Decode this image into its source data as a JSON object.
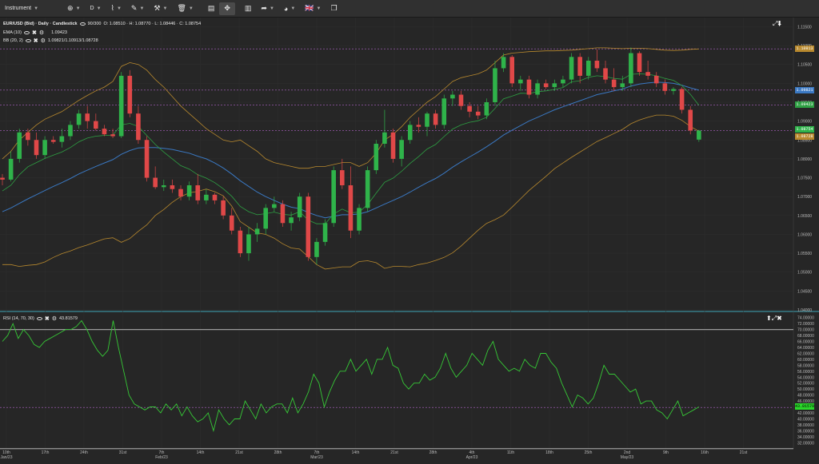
{
  "toolbar": {
    "instrument": "Instrument",
    "period": "D",
    "flag": "🇬🇧"
  },
  "legend": {
    "title": "EUR/USD (Bid) · Daily · Candlestick",
    "count": "90/300",
    "ohlc": "O: 1.08510 · H: 1.08770 · L: 1.08446 · C: 1.08754",
    "ema_label": "EMA (10)",
    "ema_value": "1.09423",
    "bb_label": "BB (20, 2)",
    "bb_value": "1.09821/1.10913/1.08728",
    "rsi_label": "RSI (14, 70, 30)",
    "rsi_value": "43.81579"
  },
  "colors": {
    "up": "#2fb34a",
    "down": "#e04848",
    "ema": "#2ea043",
    "bb_mid": "#3a78c2",
    "bb_band": "#b8892e",
    "rsi": "#36c836",
    "bg": "#262626"
  },
  "price_axis": {
    "ticks": [
      "1.11500",
      "1.11000",
      "1.10500",
      "1.10000",
      "1.09500",
      "1.09000",
      "1.08500",
      "1.08000",
      "1.07500",
      "1.07000",
      "1.06500",
      "1.06000",
      "1.05500",
      "1.05000",
      "1.04500",
      "1.04000"
    ],
    "badges": {
      "upper": "1.10913",
      "mid": "1.09821",
      "ema": "1.09423",
      "close": "1.08754",
      "lower": "1.08728"
    }
  },
  "rsi_axis": {
    "ticks": [
      "74.00000",
      "72.00000",
      "70.00000",
      "68.00000",
      "66.00000",
      "64.00000",
      "62.00000",
      "60.00000",
      "58.00000",
      "56.00000",
      "54.00000",
      "52.00000",
      "50.00000",
      "48.00000",
      "46.00000",
      "44.00000",
      "42.00000",
      "40.00000",
      "38.00000",
      "36.00000",
      "34.00000",
      "32.00000"
    ],
    "badge": "43.81579"
  },
  "x_axis": [
    {
      "l1": "10th",
      "l2": "Jan/23"
    },
    {
      "l1": "17th",
      "l2": ""
    },
    {
      "l1": "24th",
      "l2": ""
    },
    {
      "l1": "31st",
      "l2": ""
    },
    {
      "l1": "7th",
      "l2": "Feb/23"
    },
    {
      "l1": "14th",
      "l2": ""
    },
    {
      "l1": "21st",
      "l2": ""
    },
    {
      "l1": "28th",
      "l2": ""
    },
    {
      "l1": "7th",
      "l2": "Mar/23"
    },
    {
      "l1": "14th",
      "l2": ""
    },
    {
      "l1": "21st",
      "l2": ""
    },
    {
      "l1": "28th",
      "l2": ""
    },
    {
      "l1": "4th",
      "l2": "Apr/23"
    },
    {
      "l1": "11th",
      "l2": ""
    },
    {
      "l1": "18th",
      "l2": ""
    },
    {
      "l1": "25th",
      "l2": ""
    },
    {
      "l1": "2nd",
      "l2": "May/23"
    },
    {
      "l1": "9th",
      "l2": ""
    },
    {
      "l1": "16th",
      "l2": ""
    },
    {
      "l1": "21st",
      "l2": ""
    }
  ],
  "chart_data": {
    "type": "candlestick",
    "ylim": [
      1.04,
      1.117
    ],
    "rsi_ylim": [
      31,
      75
    ],
    "rsi_levels": [
      70,
      30
    ],
    "candles": [
      [
        1.075,
        1.076,
        1.073,
        1.0745
      ],
      [
        1.0745,
        1.082,
        1.074,
        1.08
      ],
      [
        1.08,
        1.088,
        1.079,
        1.087
      ],
      [
        1.087,
        1.088,
        1.0835,
        1.085
      ],
      [
        1.085,
        1.087,
        1.08,
        1.081
      ],
      [
        1.081,
        1.086,
        1.08,
        1.085
      ],
      [
        1.085,
        1.086,
        1.084,
        1.0845
      ],
      [
        1.0845,
        1.088,
        1.083,
        1.086
      ],
      [
        1.086,
        1.09,
        1.085,
        1.089
      ],
      [
        1.089,
        1.093,
        1.088,
        1.092
      ],
      [
        1.092,
        1.094,
        1.088,
        1.09
      ],
      [
        1.09,
        1.092,
        1.0875,
        1.088
      ],
      [
        1.088,
        1.089,
        1.086,
        1.0865
      ],
      [
        1.0865,
        1.088,
        1.0855,
        1.086
      ],
      [
        1.086,
        1.103,
        1.0855,
        1.102
      ],
      [
        1.102,
        1.1035,
        1.091,
        1.092
      ],
      [
        1.092,
        1.094,
        1.084,
        1.085
      ],
      [
        1.085,
        1.086,
        1.074,
        1.075
      ],
      [
        1.075,
        1.078,
        1.072,
        1.0725
      ],
      [
        1.0725,
        1.0745,
        1.0715,
        1.073
      ],
      [
        1.073,
        1.0745,
        1.071,
        1.072
      ],
      [
        1.072,
        1.073,
        1.069,
        1.07
      ],
      [
        1.07,
        1.074,
        1.069,
        1.073
      ],
      [
        1.073,
        1.076,
        1.068,
        1.069
      ],
      [
        1.069,
        1.072,
        1.068,
        1.0705
      ],
      [
        1.0705,
        1.071,
        1.068,
        1.069
      ],
      [
        1.069,
        1.07,
        1.064,
        1.065
      ],
      [
        1.065,
        1.067,
        1.06,
        1.061
      ],
      [
        1.061,
        1.062,
        1.054,
        1.055
      ],
      [
        1.055,
        1.062,
        1.053,
        1.06
      ],
      [
        1.06,
        1.063,
        1.058,
        1.0615
      ],
      [
        1.0615,
        1.068,
        1.06,
        1.067
      ],
      [
        1.067,
        1.07,
        1.066,
        1.068
      ],
      [
        1.068,
        1.069,
        1.062,
        1.063
      ],
      [
        1.063,
        1.066,
        1.061,
        1.0645
      ],
      [
        1.0645,
        1.071,
        1.0635,
        1.07
      ],
      [
        1.07,
        1.071,
        1.053,
        1.054
      ],
      [
        1.054,
        1.059,
        1.052,
        1.058
      ],
      [
        1.058,
        1.064,
        1.057,
        1.063
      ],
      [
        1.063,
        1.078,
        1.062,
        1.077
      ],
      [
        1.077,
        1.08,
        1.072,
        1.073
      ],
      [
        1.073,
        1.078,
        1.059,
        1.061
      ],
      [
        1.061,
        1.068,
        1.06,
        1.067
      ],
      [
        1.067,
        1.078,
        1.066,
        1.077
      ],
      [
        1.077,
        1.085,
        1.076,
        1.084
      ],
      [
        1.084,
        1.093,
        1.083,
        1.087
      ],
      [
        1.087,
        1.088,
        1.079,
        1.08
      ],
      [
        1.08,
        1.086,
        1.078,
        1.085
      ],
      [
        1.085,
        1.09,
        1.084,
        1.089
      ],
      [
        1.089,
        1.091,
        1.087,
        1.0885
      ],
      [
        1.0885,
        1.0925,
        1.086,
        1.092
      ],
      [
        1.092,
        1.093,
        1.088,
        1.089
      ],
      [
        1.089,
        1.097,
        1.088,
        1.096
      ],
      [
        1.096,
        1.098,
        1.094,
        1.097
      ],
      [
        1.097,
        1.098,
        1.093,
        1.094
      ],
      [
        1.094,
        1.095,
        1.091,
        1.0925
      ],
      [
        1.0925,
        1.094,
        1.0905,
        1.0915
      ],
      [
        1.0915,
        1.096,
        1.0905,
        1.095
      ],
      [
        1.095,
        1.106,
        1.094,
        1.104
      ],
      [
        1.104,
        1.108,
        1.103,
        1.107
      ],
      [
        1.107,
        1.1075,
        1.099,
        1.1
      ],
      [
        1.1,
        1.102,
        1.098,
        1.101
      ],
      [
        1.101,
        1.102,
        1.096,
        1.097
      ],
      [
        1.097,
        1.101,
        1.096,
        1.1
      ],
      [
        1.1,
        1.101,
        1.0985,
        1.099
      ],
      [
        1.099,
        1.101,
        1.098,
        1.1
      ],
      [
        1.1,
        1.102,
        1.099,
        1.101
      ],
      [
        1.101,
        1.108,
        1.1,
        1.107
      ],
      [
        1.107,
        1.108,
        1.1,
        1.102
      ],
      [
        1.102,
        1.107,
        1.101,
        1.106
      ],
      [
        1.106,
        1.109,
        1.103,
        1.104
      ],
      [
        1.104,
        1.106,
        1.1,
        1.101
      ],
      [
        1.101,
        1.104,
        1.098,
        1.099
      ],
      [
        1.099,
        1.102,
        1.098,
        1.1
      ],
      [
        1.1,
        1.1095,
        1.099,
        1.108
      ],
      [
        1.108,
        1.1085,
        1.102,
        1.103
      ],
      [
        1.103,
        1.106,
        1.101,
        1.102
      ],
      [
        1.102,
        1.103,
        1.099,
        1.1
      ],
      [
        1.1,
        1.101,
        1.097,
        1.098
      ],
      [
        1.098,
        1.099,
        1.097,
        1.0985
      ],
      [
        1.0985,
        1.099,
        1.092,
        1.093
      ],
      [
        1.093,
        1.094,
        1.0865,
        1.0875
      ],
      [
        1.0851,
        1.0877,
        1.0845,
        1.0875
      ]
    ],
    "ema": [
      1.0715,
      1.073,
      1.0758,
      1.0779,
      1.079,
      1.0801,
      1.081,
      1.0818,
      1.083,
      1.0845,
      1.0855,
      1.086,
      1.0862,
      1.0863,
      1.089,
      1.0894,
      1.0886,
      1.0862,
      1.0838,
      1.0818,
      1.08,
      1.0782,
      1.0773,
      1.0758,
      1.0749,
      1.0737,
      1.0721,
      1.0701,
      1.0674,
      1.066,
      1.0652,
      1.0655,
      1.0659,
      1.0653,
      1.0651,
      1.066,
      1.0638,
      1.0628,
      1.0628,
      1.0654,
      1.0667,
      1.0657,
      1.0659,
      1.0679,
      1.0709,
      1.0738,
      1.0749,
      1.0767,
      1.0788,
      1.0806,
      1.0826,
      1.0838,
      1.0859,
      1.0879,
      1.089,
      1.0897,
      1.0901,
      1.091,
      1.0934,
      1.0959,
      1.0966,
      1.0974,
      1.0973,
      1.0978,
      1.098,
      1.0984,
      1.0989,
      1.1004,
      1.1007,
      1.1016,
      1.102,
      1.1018,
      1.1013,
      1.1011,
      1.1024,
      1.1025,
      1.1024,
      1.102,
      1.1013,
      1.1008,
      1.0994,
      1.0971,
      1.0942
    ],
    "bb_mid": [
      1.066,
      1.067,
      1.0682,
      1.0694,
      1.0705,
      1.0716,
      1.0727,
      1.0737,
      1.0748,
      1.076,
      1.077,
      1.078,
      1.0789,
      1.0798,
      1.0812,
      1.0822,
      1.0829,
      1.083,
      1.083,
      1.0828,
      1.0825,
      1.082,
      1.0815,
      1.0807,
      1.08,
      1.0789,
      1.0776,
      1.076,
      1.0742,
      1.0727,
      1.0712,
      1.07,
      1.069,
      1.068,
      1.0672,
      1.0668,
      1.0658,
      1.065,
      1.0644,
      1.0648,
      1.0652,
      1.0652,
      1.0654,
      1.066,
      1.067,
      1.068,
      1.069,
      1.07,
      1.0712,
      1.0725,
      1.0737,
      1.0748,
      1.0762,
      1.0778,
      1.0792,
      1.0805,
      1.0818,
      1.0832,
      1.0847,
      1.0863,
      1.0876,
      1.0888,
      1.09,
      1.091,
      1.092,
      1.093,
      1.0938,
      1.0946,
      1.0954,
      1.0962,
      1.097,
      1.0975,
      1.098,
      1.0985,
      1.0993,
      1.0998,
      1.1001,
      1.1003,
      1.1002,
      1.1,
      1.0995,
      1.0988,
      1.0982
    ],
    "bb_up": [
      1.08,
      1.082,
      1.085,
      1.087,
      1.089,
      1.0905,
      1.0915,
      1.0925,
      1.094,
      1.0955,
      1.0968,
      1.098,
      1.099,
      1.1005,
      1.1045,
      1.1055,
      1.105,
      1.1035,
      1.101,
      1.099,
      1.0965,
      1.094,
      1.092,
      1.09,
      1.088,
      1.0865,
      1.085,
      1.0845,
      1.085,
      1.0835,
      1.082,
      1.08,
      1.079,
      1.0785,
      1.078,
      1.0775,
      1.0775,
      1.078,
      1.078,
      1.0785,
      1.079,
      1.079,
      1.078,
      1.079,
      1.0815,
      1.085,
      1.0865,
      1.0885,
      1.091,
      1.093,
      1.095,
      1.0965,
      1.0985,
      1.1005,
      1.1015,
      1.102,
      1.1025,
      1.1035,
      1.1055,
      1.1075,
      1.108,
      1.1082,
      1.1084,
      1.1085,
      1.1086,
      1.1086,
      1.1087,
      1.1088,
      1.109,
      1.1092,
      1.1094,
      1.1094,
      1.1093,
      1.1092,
      1.1093,
      1.1093,
      1.1092,
      1.109,
      1.1088,
      1.1087,
      1.1088,
      1.109,
      1.1091
    ],
    "bb_low": [
      1.052,
      1.052,
      1.0515,
      1.0518,
      1.052,
      1.0527,
      1.0539,
      1.0549,
      1.0556,
      1.0565,
      1.0572,
      1.058,
      1.0588,
      1.0591,
      1.0579,
      1.0589,
      1.0608,
      1.0625,
      1.065,
      1.0666,
      1.0685,
      1.07,
      1.071,
      1.0714,
      1.072,
      1.0713,
      1.0702,
      1.0675,
      1.0634,
      1.0619,
      1.0604,
      1.06,
      1.059,
      1.0575,
      1.0564,
      1.0561,
      1.0541,
      1.052,
      1.0508,
      1.0511,
      1.0514,
      1.0514,
      1.0528,
      1.053,
      1.0525,
      1.051,
      1.0515,
      1.0515,
      1.0514,
      1.052,
      1.0524,
      1.0531,
      1.0539,
      1.0551,
      1.0569,
      1.059,
      1.0611,
      1.0629,
      1.0639,
      1.0651,
      1.0672,
      1.0694,
      1.0716,
      1.0735,
      1.0754,
      1.0774,
      1.0789,
      1.0804,
      1.0818,
      1.0832,
      1.0846,
      1.0856,
      1.0867,
      1.0878,
      1.0893,
      1.0903,
      1.091,
      1.0916,
      1.0916,
      1.0913,
      1.0902,
      1.0886,
      1.0873
    ],
    "rsi": [
      66,
      68,
      72,
      67,
      70,
      68,
      65,
      64,
      66,
      67,
      68,
      69,
      70,
      70,
      71,
      73,
      70,
      66,
      63,
      61,
      63,
      73,
      64,
      56,
      48,
      45,
      44,
      43,
      44,
      44,
      42,
      45,
      43,
      45,
      41,
      44,
      41,
      39,
      40,
      42,
      36,
      43,
      40,
      38,
      40,
      40,
      46,
      43,
      40,
      45,
      42,
      44,
      45,
      45,
      42,
      47,
      42,
      45,
      49,
      55,
      52,
      44,
      49,
      53,
      56,
      56,
      60,
      56,
      58,
      60,
      55,
      60,
      60,
      64,
      58,
      57,
      52,
      50,
      52,
      52,
      55,
      53,
      54,
      57,
      62,
      57,
      54,
      56,
      58,
      62,
      60,
      58,
      63,
      66,
      60,
      58,
      56,
      57,
      56,
      60,
      58,
      57,
      62,
      62,
      59,
      57,
      52,
      48,
      44,
      48,
      47,
      45,
      47,
      52,
      58,
      55,
      55,
      53,
      51,
      49,
      50,
      45,
      46,
      46,
      43,
      42,
      40,
      43,
      46,
      41,
      42,
      43,
      44
    ]
  }
}
